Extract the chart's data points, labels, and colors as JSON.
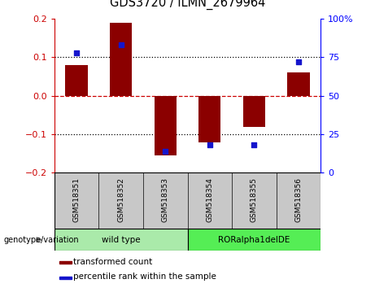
{
  "title": "GDS3720 / ILMN_2679964",
  "samples": [
    "GSM518351",
    "GSM518352",
    "GSM518353",
    "GSM518354",
    "GSM518355",
    "GSM518356"
  ],
  "bar_values": [
    0.08,
    0.19,
    -0.155,
    -0.12,
    -0.08,
    0.06
  ],
  "percentile_values": [
    78,
    83,
    14,
    18,
    18,
    72
  ],
  "bar_color": "#8B0000",
  "dot_color": "#1515CC",
  "ylim_left": [
    -0.2,
    0.2
  ],
  "ylim_right": [
    0,
    100
  ],
  "yticks_left": [
    -0.2,
    -0.1,
    0,
    0.1,
    0.2
  ],
  "yticks_right": [
    0,
    25,
    50,
    75,
    100
  ],
  "ytick_labels_right": [
    "0",
    "25",
    "50",
    "75",
    "100%"
  ],
  "dotted_lines": [
    -0.1,
    0.1
  ],
  "groups": [
    {
      "label": "wild type",
      "samples": [
        0,
        1,
        2
      ],
      "color": "#AAEAAA"
    },
    {
      "label": "RORalpha1delDE",
      "samples": [
        3,
        4,
        5
      ],
      "color": "#55EE55"
    }
  ],
  "legend_bar_label": "transformed count",
  "legend_dot_label": "percentile rank within the sample",
  "genotype_label": "genotype/variation",
  "sample_bg": "#C8C8C8",
  "bar_width": 0.5
}
